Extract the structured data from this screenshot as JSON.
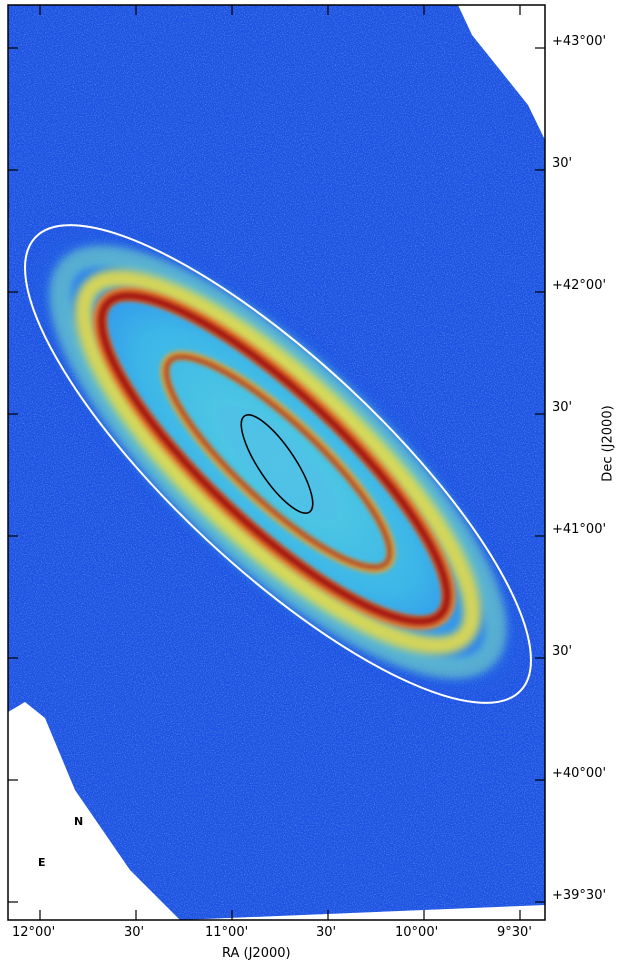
{
  "figure": {
    "x_axis": {
      "title": "RA (J2000)",
      "tick_labels": [
        "12°00'",
        "30'",
        "11°00'",
        "30'",
        "10°00'",
        "9°30'"
      ]
    },
    "y_axis": {
      "title": "Dec (J2000)",
      "tick_labels": [
        "+43°00'",
        "30'",
        "+42°00'",
        "30'",
        "+41°00'",
        "30'",
        "+40°00'",
        "+39°30'"
      ]
    },
    "compass": {
      "north": "N",
      "east": "E"
    },
    "colors": {
      "background": "#1a4fe0",
      "outer_ellipse": "#ffffff",
      "inner_ellipse": "#000000",
      "ring_hot": "#a01010",
      "ring_warm": "#f0c020",
      "disk_mid": "#40c0e0"
    },
    "colormap": "jet"
  }
}
